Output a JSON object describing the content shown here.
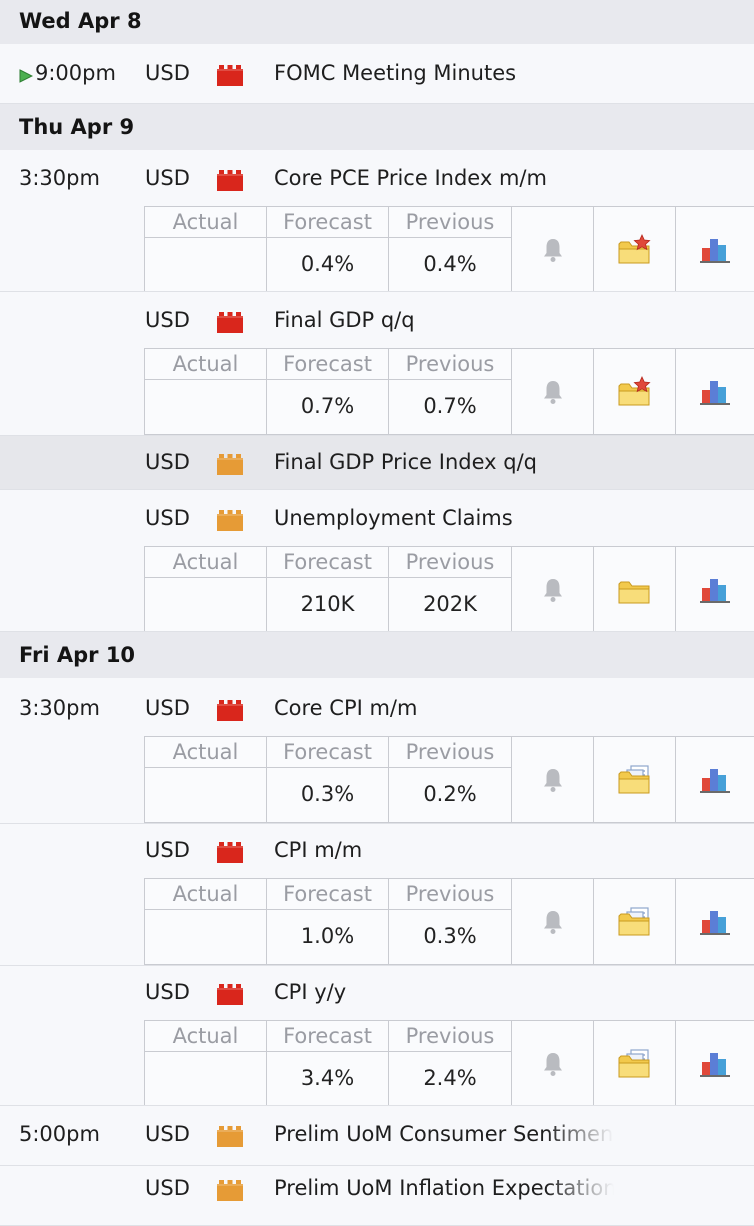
{
  "days": [
    {
      "label": "Wed Apr 8",
      "events": [
        {
          "time": "9:00pm",
          "currency": "USD",
          "impact": "high",
          "title": "FOMC Meeting Minutes",
          "upcoming": true
        }
      ]
    },
    {
      "label": "Thu Apr 9",
      "events": [
        {
          "time": "3:30pm",
          "currency": "USD",
          "impact": "high",
          "title": "Core PCE Price Index m/m",
          "actual": "",
          "forecast": "0.4%",
          "previous": "0.4%",
          "folder": "star"
        },
        {
          "time": "",
          "currency": "USD",
          "impact": "high",
          "title": "Final GDP q/q",
          "actual": "",
          "forecast": "0.7%",
          "previous": "0.7%",
          "folder": "star"
        },
        {
          "time": "",
          "currency": "USD",
          "impact": "medium",
          "title": "Final GDP Price Index q/q",
          "highlighted": true
        },
        {
          "time": "",
          "currency": "USD",
          "impact": "medium",
          "title": "Unemployment Claims",
          "actual": "",
          "forecast": "210K",
          "previous": "202K",
          "folder": "plain"
        }
      ]
    },
    {
      "label": "Fri Apr 10",
      "events": [
        {
          "time": "3:30pm",
          "currency": "USD",
          "impact": "high",
          "title": "Core CPI m/m",
          "actual": "",
          "forecast": "0.3%",
          "previous": "0.2%",
          "folder": "docs"
        },
        {
          "time": "",
          "currency": "USD",
          "impact": "high",
          "title": "CPI m/m",
          "actual": "",
          "forecast": "1.0%",
          "previous": "0.3%",
          "folder": "docs"
        },
        {
          "time": "",
          "currency": "USD",
          "impact": "high",
          "title": "CPI y/y",
          "actual": "",
          "forecast": "3.4%",
          "previous": "2.4%",
          "folder": "docs"
        },
        {
          "time": "5:00pm",
          "currency": "USD",
          "impact": "medium",
          "title": "Prelim UoM Consumer Sentiment"
        },
        {
          "time": "",
          "currency": "USD",
          "impact": "medium",
          "title": "Prelim UoM Inflation Expectations"
        }
      ]
    }
  ],
  "labels": {
    "actual": "Actual",
    "forecast": "Forecast",
    "previous": "Previous"
  },
  "icons": {
    "upcoming": "play-icon",
    "alert": "bell-icon",
    "detail_star": "folder-star-icon",
    "detail_plain": "folder-icon",
    "detail_docs": "folder-docs-icon",
    "graph": "bar-chart-icon",
    "impact_high": "impact-high-icon",
    "impact_medium": "impact-medium-icon"
  },
  "colors": {
    "impact_high": "#d9261c",
    "impact_medium": "#e69b36",
    "header_bg": "#e8e9ee",
    "accent": "#5f7bb5"
  }
}
